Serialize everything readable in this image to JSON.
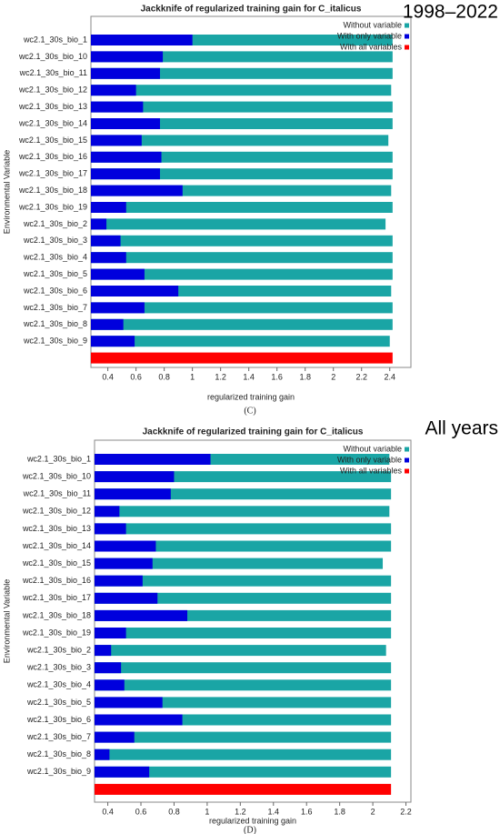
{
  "chart_data": [
    {
      "type": "bar",
      "orientation": "horizontal",
      "title": "Jackknife of regularized training gain for C_italicus",
      "annotation": "1998–2022",
      "caption": "(C)",
      "xlabel": "regularized training gain",
      "ylabel": "Environmental Variable",
      "categories": [
        "wc2.1_30s_bio_1",
        "wc2.1_30s_bio_10",
        "wc2.1_30s_bio_11",
        "wc2.1_30s_bio_12",
        "wc2.1_30s_bio_13",
        "wc2.1_30s_bio_14",
        "wc2.1_30s_bio_15",
        "wc2.1_30s_bio_16",
        "wc2.1_30s_bio_17",
        "wc2.1_30s_bio_18",
        "wc2.1_30s_bio_19",
        "wc2.1_30s_bio_2",
        "wc2.1_30s_bio_3",
        "wc2.1_30s_bio_4",
        "wc2.1_30s_bio_5",
        "wc2.1_30s_bio_6",
        "wc2.1_30s_bio_7",
        "wc2.1_30s_bio_8",
        "wc2.1_30s_bio_9"
      ],
      "series": [
        {
          "name": "Without variable",
          "color": "#1aa5a5",
          "values": [
            2.42,
            2.42,
            2.42,
            2.41,
            2.42,
            2.42,
            2.39,
            2.42,
            2.42,
            2.41,
            2.42,
            2.37,
            2.42,
            2.42,
            2.42,
            2.41,
            2.42,
            2.42,
            2.4
          ]
        },
        {
          "name": "With only variable",
          "color": "#0000dd",
          "values": [
            1.0,
            0.79,
            0.77,
            0.6,
            0.65,
            0.77,
            0.64,
            0.78,
            0.77,
            0.93,
            0.53,
            0.39,
            0.49,
            0.53,
            0.66,
            0.9,
            0.66,
            0.51,
            0.59
          ]
        }
      ],
      "total": {
        "name": "With all variables",
        "color": "#ff0000",
        "value": 2.42
      },
      "xlim": [
        0.28,
        2.55
      ],
      "xticks": [
        0.4,
        0.6,
        0.8,
        1.0,
        1.2,
        1.4,
        1.6,
        1.8,
        2.0,
        2.2,
        2.4
      ]
    },
    {
      "type": "bar",
      "orientation": "horizontal",
      "title": "Jackknife of regularized training gain for C_italicus",
      "annotation": "All years",
      "caption": "(D)",
      "xlabel": "regularized training gain",
      "ylabel": "Environmental Variable",
      "categories": [
        "wc2.1_30s_bio_1",
        "wc2.1_30s_bio_10",
        "wc2.1_30s_bio_11",
        "wc2.1_30s_bio_12",
        "wc2.1_30s_bio_13",
        "wc2.1_30s_bio_14",
        "wc2.1_30s_bio_15",
        "wc2.1_30s_bio_16",
        "wc2.1_30s_bio_17",
        "wc2.1_30s_bio_18",
        "wc2.1_30s_bio_19",
        "wc2.1_30s_bio_2",
        "wc2.1_30s_bio_3",
        "wc2.1_30s_bio_4",
        "wc2.1_30s_bio_5",
        "wc2.1_30s_bio_6",
        "wc2.1_30s_bio_7",
        "wc2.1_30s_bio_8",
        "wc2.1_30s_bio_9"
      ],
      "series": [
        {
          "name": "Without variable",
          "color": "#1aa5a5",
          "values": [
            2.1,
            2.11,
            2.11,
            2.1,
            2.11,
            2.11,
            2.06,
            2.11,
            2.11,
            2.11,
            2.11,
            2.08,
            2.11,
            2.11,
            2.11,
            2.11,
            2.11,
            2.11,
            2.11
          ]
        },
        {
          "name": "With only variable",
          "color": "#0000dd",
          "values": [
            1.02,
            0.8,
            0.78,
            0.47,
            0.51,
            0.69,
            0.67,
            0.61,
            0.7,
            0.88,
            0.51,
            0.42,
            0.48,
            0.5,
            0.73,
            0.85,
            0.56,
            0.41,
            0.65
          ]
        }
      ],
      "total": {
        "name": "With all variables",
        "color": "#ff0000",
        "value": 2.11
      },
      "xlim": [
        0.32,
        2.23
      ],
      "xticks": [
        0.4,
        0.6,
        0.8,
        1.0,
        1.2,
        1.4,
        1.6,
        1.8,
        2.0,
        2.2
      ]
    }
  ]
}
